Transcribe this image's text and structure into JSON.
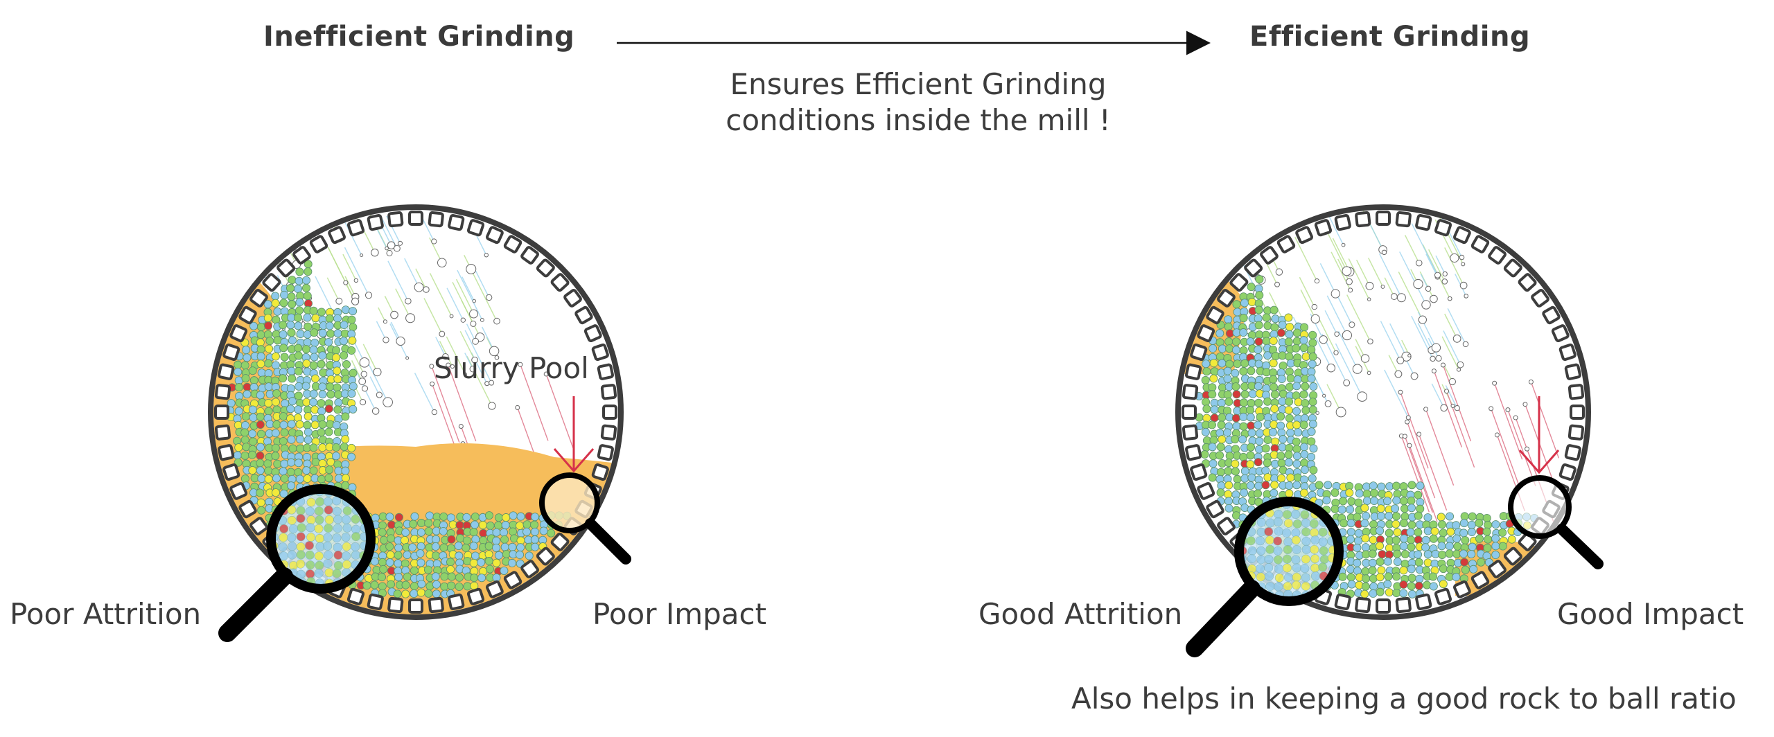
{
  "header": {
    "left_title": "Inefficient Grinding",
    "right_title": "Efficient Grinding",
    "caption_line1": "Ensures Efficient Grinding",
    "caption_line2": "conditions inside the mill !"
  },
  "left_mill": {
    "slurry_label": "Slurry Pool",
    "attrition_label": "Poor Attrition",
    "impact_label": "Poor Impact"
  },
  "right_mill": {
    "attrition_label": "Good Attrition",
    "impact_label": "Good Impact"
  },
  "footer": {
    "note": "Also helps in keeping a good rock to ball ratio"
  },
  "colors": {
    "text": "#3a3a3a",
    "shell": "#3d3d3d",
    "slurry": "#f6bd5b",
    "arrow_red": "#d6324a",
    "ball_green": "#8fd16a",
    "ball_blue": "#8ec9ea",
    "ball_yellow": "#f2ea3a",
    "ball_red": "#d43a3a"
  }
}
